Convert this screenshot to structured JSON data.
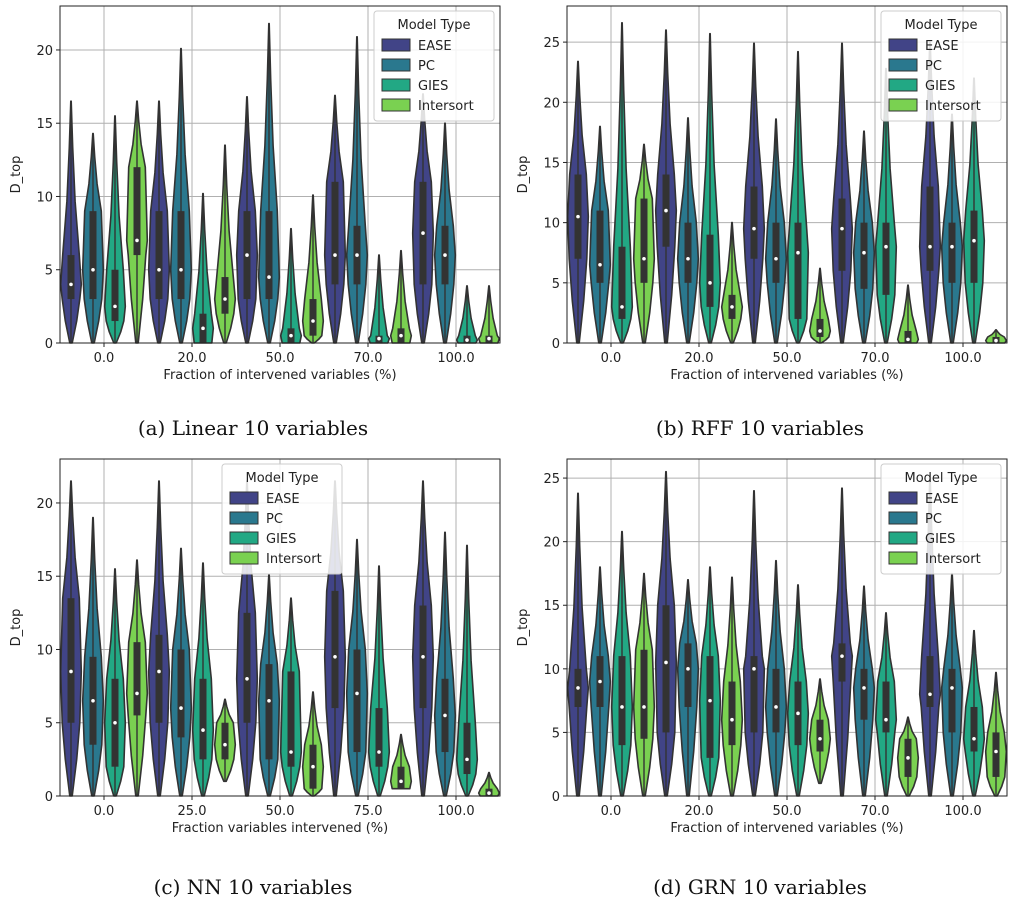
{
  "legend": {
    "title": "Model Type",
    "entries": [
      {
        "name": "EASE",
        "color": "#414487"
      },
      {
        "name": "PC",
        "color": "#2a788e"
      },
      {
        "name": "GIES",
        "color": "#22a884"
      },
      {
        "name": "Intersort",
        "color": "#7ad151"
      }
    ]
  },
  "chart_data": [
    {
      "type": "violin",
      "caption": "(a) Linear 10 variables",
      "xlabel": "Fraction of intervened variables (%)",
      "ylabel": "D_top",
      "categories": [
        "0.0",
        "20.0",
        "50.0",
        "70.0",
        "100.0"
      ],
      "ylim": [
        0,
        23
      ],
      "yticks": [
        0,
        5,
        10,
        15,
        20
      ],
      "legend_position": "top-right",
      "grid": true,
      "series": [
        {
          "name": "EASE",
          "min": [
            0,
            0,
            0,
            0,
            0
          ],
          "q1": [
            3,
            3,
            3,
            4,
            4
          ],
          "median": [
            4,
            5,
            6,
            6,
            7.5
          ],
          "q3": [
            6,
            9,
            9,
            11,
            11
          ],
          "max": [
            16.5,
            16.5,
            16.8,
            16.9,
            17
          ]
        },
        {
          "name": "PC",
          "min": [
            0,
            0,
            0,
            0,
            0
          ],
          "q1": [
            3,
            3,
            3,
            4,
            4
          ],
          "median": [
            5,
            5,
            4.5,
            6,
            6
          ],
          "q3": [
            9,
            9,
            9,
            8,
            8
          ],
          "max": [
            14.3,
            20.1,
            21.8,
            20.9,
            15
          ]
        },
        {
          "name": "GIES",
          "min": [
            0,
            0,
            0,
            0,
            0
          ],
          "q1": [
            1.5,
            0,
            0,
            0,
            0
          ],
          "median": [
            2.5,
            1,
            0.5,
            0.3,
            0.2
          ],
          "q3": [
            5,
            2,
            1,
            0.5,
            0.5
          ],
          "max": [
            15.5,
            10.2,
            7.8,
            6,
            3.9
          ]
        },
        {
          "name": "Intersort",
          "min": [
            0,
            0,
            0,
            0,
            0
          ],
          "q1": [
            6,
            2,
            0.5,
            0,
            0
          ],
          "median": [
            7,
            3,
            1.5,
            0.5,
            0.3
          ],
          "q3": [
            12,
            4.5,
            3,
            1,
            0.5
          ],
          "max": [
            16.5,
            13.5,
            10.1,
            6.3,
            3.9
          ]
        }
      ]
    },
    {
      "type": "violin",
      "caption": "(b) RFF 10 variables",
      "xlabel": "Fraction of intervened variables (%)",
      "ylabel": "D_top",
      "categories": [
        "0.0",
        "20.0",
        "50.0",
        "70.0",
        "100.0"
      ],
      "ylim": [
        0,
        28
      ],
      "yticks": [
        0,
        5,
        10,
        15,
        20,
        25
      ],
      "legend_position": "top-right",
      "grid": true,
      "series": [
        {
          "name": "EASE",
          "min": [
            0,
            0,
            0,
            0,
            0
          ],
          "q1": [
            7,
            8,
            7,
            6,
            6
          ],
          "median": [
            10.5,
            11,
            9.5,
            9.5,
            8
          ],
          "q3": [
            14,
            14,
            13,
            12,
            13
          ],
          "max": [
            23.4,
            26,
            24.9,
            24.9,
            25
          ]
        },
        {
          "name": "PC",
          "min": [
            0,
            0,
            0,
            0,
            0
          ],
          "q1": [
            5,
            5,
            5,
            4.5,
            5
          ],
          "median": [
            6.5,
            7,
            7,
            7.5,
            8
          ],
          "q3": [
            11,
            10,
            10,
            10,
            10
          ],
          "max": [
            18,
            18.7,
            18.6,
            17.6,
            19
          ]
        },
        {
          "name": "GIES",
          "min": [
            0,
            0,
            0,
            0,
            0
          ],
          "q1": [
            2,
            3,
            2,
            4,
            5
          ],
          "median": [
            3,
            5,
            7.5,
            8,
            8.5
          ],
          "q3": [
            8,
            9,
            10,
            10,
            11
          ],
          "max": [
            26.6,
            25.7,
            24.2,
            22.8,
            22
          ]
        },
        {
          "name": "Intersort",
          "min": [
            0,
            0,
            0,
            0,
            0
          ],
          "q1": [
            5,
            2,
            0.5,
            0,
            0
          ],
          "median": [
            7,
            3,
            1,
            0.3,
            0.2
          ],
          "q3": [
            12,
            4,
            2,
            1,
            0.5
          ],
          "max": [
            16.5,
            10,
            6.2,
            4.8,
            1.1
          ]
        }
      ]
    },
    {
      "type": "violin",
      "caption": "(c) NN 10 variables",
      "xlabel": "Fraction variables intervened (%)",
      "ylabel": "D_top",
      "categories": [
        "0.0",
        "25.0",
        "50.0",
        "75.0",
        "100.0"
      ],
      "ylim": [
        0,
        23
      ],
      "yticks": [
        0,
        5,
        10,
        15,
        20
      ],
      "legend_position": "top-center",
      "grid": true,
      "series": [
        {
          "name": "EASE",
          "min": [
            0,
            0,
            0,
            0,
            0
          ],
          "q1": [
            5,
            5,
            5,
            6,
            6
          ],
          "median": [
            8.5,
            8.5,
            8,
            9.5,
            9.5
          ],
          "q3": [
            13.5,
            11,
            12.5,
            14,
            13
          ]
        },
        {
          "name": "PC",
          "min": [
            0,
            0,
            0,
            0,
            0
          ],
          "q1": [
            3.5,
            4,
            2.5,
            3,
            3
          ],
          "median": [
            6.5,
            6,
            6.5,
            7,
            5.5
          ],
          "q3": [
            9.5,
            10,
            9,
            10,
            8
          ],
          "max": [
            19,
            16.9,
            15.1,
            17.5,
            18
          ]
        },
        {
          "name": "GIES",
          "min": [
            0,
            0,
            0,
            0,
            0
          ],
          "q1": [
            2,
            2.5,
            2,
            2,
            1.5
          ],
          "median": [
            5,
            4.5,
            3,
            3,
            2.5
          ],
          "q3": [
            8,
            8,
            8.5,
            6,
            5
          ],
          "max": [
            15.5,
            15.9,
            13.5,
            15.7,
            17.1
          ]
        },
        {
          "name": "Intersort",
          "min": [
            0,
            1,
            0,
            0.5,
            0
          ],
          "q1": [
            5.5,
            2.5,
            0.5,
            0.5,
            0
          ],
          "median": [
            7,
            3.5,
            2,
            1,
            0.2
          ],
          "q3": [
            10.5,
            5,
            3.5,
            2,
            0.5
          ],
          "max": [
            16.1,
            6.6,
            7.1,
            4.2,
            1.6
          ]
        }
      ]
    },
    {
      "type": "violin",
      "caption": "(d) GRN 10 variables",
      "xlabel": "Fraction of intervened variables (%)",
      "ylabel": "D_top",
      "categories": [
        "0.0",
        "20.0",
        "50.0",
        "70.0",
        "100.0"
      ],
      "ylim": [
        0,
        26.5
      ],
      "yticks": [
        0,
        5,
        10,
        15,
        20,
        25
      ],
      "legend_position": "top-right",
      "grid": true,
      "series": [
        {
          "name": "EASE",
          "min": [
            0,
            0,
            0,
            0,
            0
          ],
          "q1": [
            7,
            5,
            5,
            9,
            7
          ],
          "median": [
            8.5,
            10.5,
            10,
            11,
            8
          ],
          "q3": [
            10,
            15,
            11,
            12,
            11
          ],
          "max": [
            23.8,
            25.5,
            24,
            24.2,
            25
          ]
        },
        {
          "name": "PC",
          "min": [
            0,
            0,
            0,
            0,
            0
          ],
          "q1": [
            7,
            7,
            5,
            6,
            5
          ],
          "median": [
            9,
            10,
            7,
            8.5,
            8.5
          ],
          "q3": [
            11,
            12,
            10,
            10,
            10
          ],
          "max": [
            18,
            17,
            18.5,
            16.5,
            17.5
          ]
        },
        {
          "name": "GIES",
          "min": [
            0,
            0,
            0,
            0,
            0
          ],
          "q1": [
            4,
            3,
            4,
            5,
            3.5
          ],
          "median": [
            7,
            7.5,
            6.5,
            6,
            4.5
          ],
          "q3": [
            11,
            11,
            9,
            9,
            7
          ],
          "max": [
            20.8,
            18,
            16.6,
            14.4,
            13
          ]
        },
        {
          "name": "Intersort",
          "min": [
            0,
            0,
            1,
            0,
            0
          ],
          "q1": [
            4.5,
            4,
            3.5,
            1.5,
            1.5
          ],
          "median": [
            7,
            6,
            4.5,
            3,
            3.5
          ],
          "q3": [
            11.5,
            9,
            6,
            4.5,
            5
          ],
          "max": [
            17.5,
            17.2,
            9.2,
            6.2,
            9.7
          ]
        }
      ]
    }
  ]
}
